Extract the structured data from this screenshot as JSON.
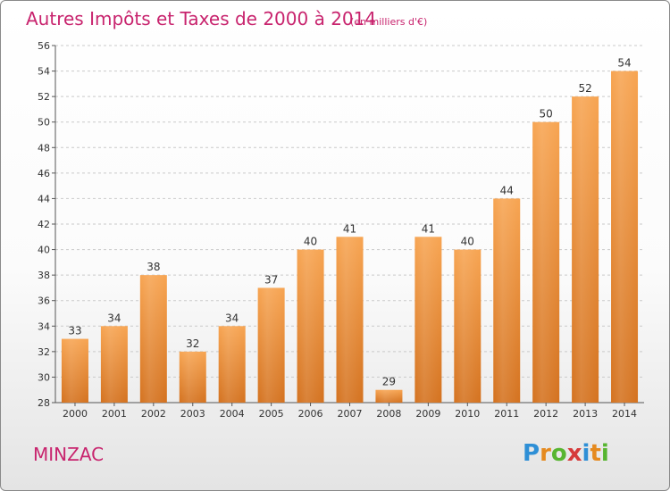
{
  "chart_data": {
    "type": "bar",
    "title": "Autres Impôts et Taxes de 2000 à 2014",
    "subtitle": "(en milliers d'€)",
    "categories": [
      "2000",
      "2001",
      "2002",
      "2003",
      "2004",
      "2005",
      "2006",
      "2007",
      "2008",
      "2009",
      "2010",
      "2011",
      "2012",
      "2013",
      "2014"
    ],
    "values": [
      33,
      34,
      38,
      32,
      34,
      37,
      40,
      41,
      29,
      41,
      40,
      44,
      50,
      52,
      54
    ],
    "ylim": [
      28,
      56
    ],
    "yticks": [
      28,
      30,
      32,
      34,
      36,
      38,
      40,
      42,
      44,
      46,
      48,
      50,
      52,
      54,
      56
    ],
    "grid": true,
    "bar_color": "#f0a050"
  },
  "place_name": "MINZAC",
  "logo": {
    "letters": [
      "P",
      "r",
      "o",
      "x",
      "i",
      "t",
      "i"
    ],
    "colors": [
      "#2e8fd6",
      "#e58a1f",
      "#57b530",
      "#d63a3a",
      "#2e8fd6",
      "#e58a1f",
      "#57b530"
    ]
  }
}
